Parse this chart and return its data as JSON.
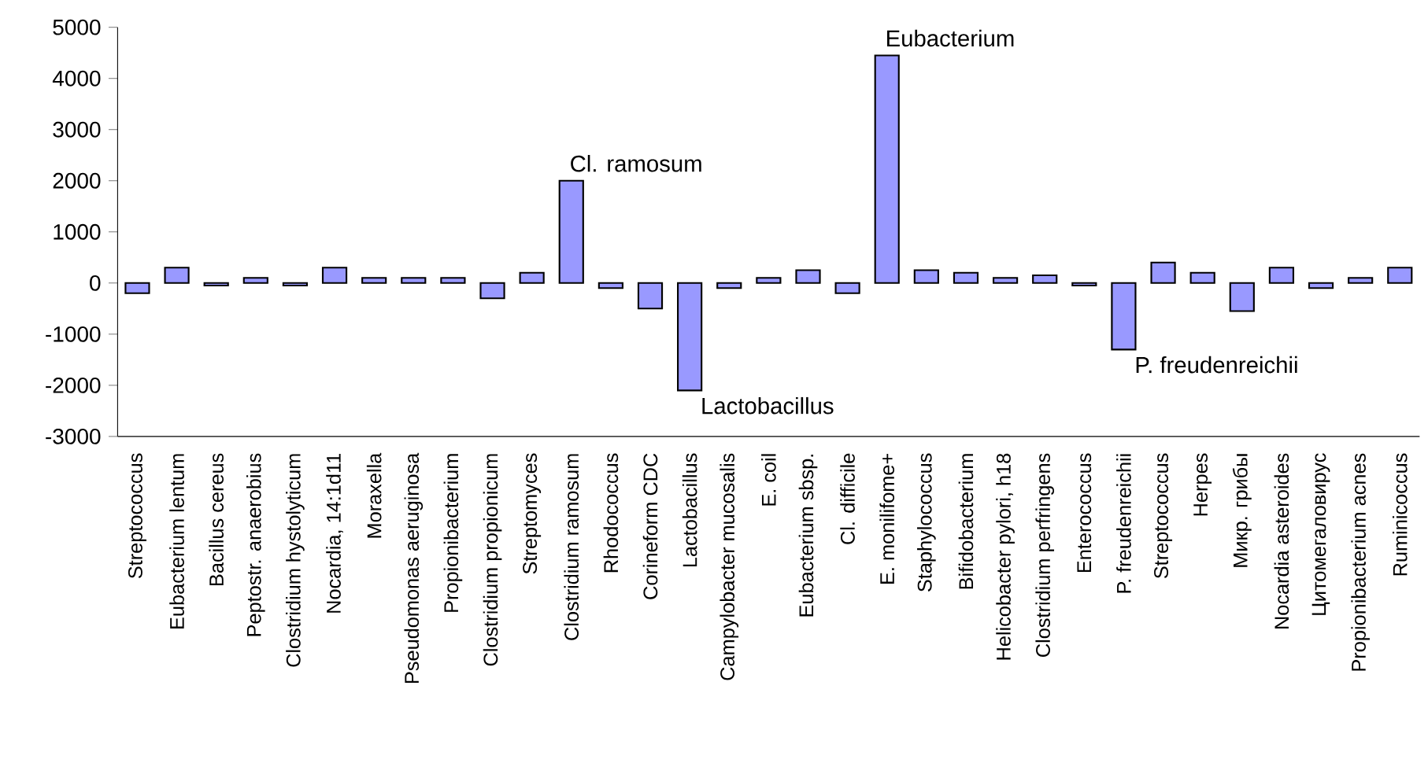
{
  "chart_data": {
    "type": "bar",
    "categories": [
      "Streptococcus",
      "Eubacterium lentum",
      "Bacillus cereus",
      "Peptostr. anaerobius",
      "Clostridium hystolyticum",
      "Nocardia, 14:1d11",
      "Moraxella",
      "Pseudomonas aeruginosa",
      "Propionibacterium",
      "Clostridium propionicum",
      "Streptomyces",
      "Clostridium ramosum",
      "Rhodococcus",
      "Corineform CDC",
      "Lactobacillus",
      "Campylobacter mucosalis",
      "E. coil",
      "Eubacterium sbsp.",
      "Cl. difficile",
      "E. monilifome+",
      "Staphylococcus",
      "Bifidobacterium",
      "Helicobacter pylori, h18",
      "Clostridium perfringens",
      "Enterococcus",
      "P. freudenreichii",
      "Streptococcus",
      "Herpes",
      "Микр. грибы",
      "Nocardia asteroides",
      "Цитомегаловирус",
      "Propionibacterium acnes",
      "Ruminicoccus"
    ],
    "values": [
      -200,
      300,
      -50,
      100,
      -50,
      300,
      100,
      100,
      100,
      -300,
      200,
      2000,
      -100,
      -500,
      -2100,
      -100,
      100,
      250,
      -200,
      4450,
      250,
      200,
      100,
      150,
      -50,
      -1300,
      400,
      200,
      -550,
      300,
      -100,
      100,
      300
    ],
    "color": "#9999ff",
    "ylim": [
      -3000,
      5000
    ],
    "yticks": [
      -3000,
      -2000,
      -1000,
      0,
      1000,
      2000,
      3000,
      4000,
      5000
    ],
    "grid": false,
    "annotations": [
      {
        "text": "Cl. ramosum",
        "x": "Clostridium ramosum",
        "y": 2000
      },
      {
        "text": "Lactobacillus",
        "x": "Lactobacillus",
        "y": -2100
      },
      {
        "text": "Eubacterium",
        "x": "E. monilifome+",
        "y": 4450
      },
      {
        "text": "P. freudenreichii",
        "x": "P. freudenreichii",
        "y": -1300
      }
    ]
  }
}
